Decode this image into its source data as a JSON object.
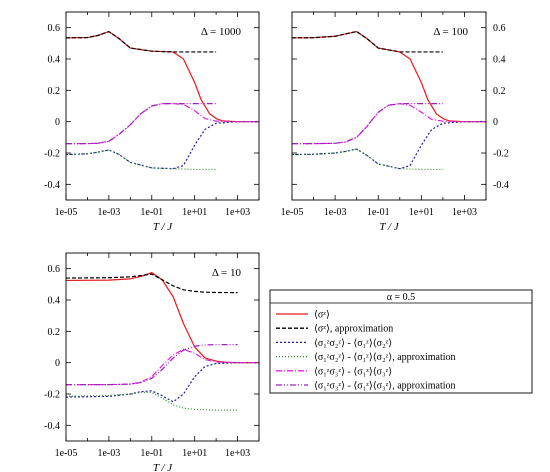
{
  "chart_data": [
    {
      "type": "line",
      "annotation": "Δ = 1000",
      "xlabel": "T / J",
      "ylabel": "",
      "x_scale": "log",
      "xlim": [
        1e-05,
        10000
      ],
      "ylim": [
        -0.5,
        0.7
      ],
      "x_tick_labels": [
        "1e-05",
        "1e-03",
        "1e-01",
        "1e+01",
        "1e+03"
      ],
      "y_tick_labels": [
        "-0.4",
        "-0.2",
        "0",
        "0.2",
        "0.4",
        "0.6"
      ],
      "y_ticks_side": "left",
      "grid": false,
      "series": [
        {
          "name": "⟨σᶻ⟩",
          "color": "#e41a1c",
          "dash": "",
          "x": [
            1e-05,
            0.0001,
            0.0003,
            0.001,
            0.003,
            0.01,
            0.1,
            1,
            3,
            10,
            20,
            50,
            100,
            200,
            1000,
            10000
          ],
          "y": [
            0.535,
            0.537,
            0.55,
            0.575,
            0.53,
            0.47,
            0.45,
            0.445,
            0.4,
            0.25,
            0.14,
            0.05,
            0.02,
            0.005,
            0,
            0
          ]
        },
        {
          "name": "⟨σᶻ⟩, approximation",
          "color": "#000000",
          "dash": "4,2",
          "x": [
            1e-05,
            0.0001,
            0.0003,
            0.001,
            0.003,
            0.01,
            0.1,
            1,
            10,
            100
          ],
          "y": [
            0.535,
            0.537,
            0.55,
            0.575,
            0.53,
            0.47,
            0.45,
            0.445,
            0.445,
            0.445
          ]
        },
        {
          "name": "⟨σ₁ᶻσ₂ᶻ⟩ - ⟨σ₁ᶻ⟩⟨σ₂ᶻ⟩",
          "color": "#1f1f9e",
          "dash": "2,2",
          "x": [
            1e-05,
            0.0001,
            0.0003,
            0.001,
            0.003,
            0.01,
            0.1,
            1,
            3,
            10,
            30,
            100,
            1000,
            10000
          ],
          "y": [
            -0.21,
            -0.205,
            -0.195,
            -0.18,
            -0.21,
            -0.26,
            -0.295,
            -0.3,
            -0.28,
            -0.15,
            -0.05,
            -0.01,
            0,
            0
          ]
        },
        {
          "name": "⟨σ₁ᶻσ₂ᶻ⟩ - ⟨σ₁ᶻ⟩⟨σ₂ᶻ⟩, approximation",
          "color": "#2e8b2e",
          "dash": "1,2",
          "x": [
            1e-05,
            0.0001,
            0.0003,
            0.001,
            0.003,
            0.01,
            0.1,
            1,
            10,
            100
          ],
          "y": [
            -0.21,
            -0.205,
            -0.195,
            -0.18,
            -0.21,
            -0.26,
            -0.295,
            -0.3,
            -0.305,
            -0.305
          ]
        },
        {
          "name": "⟨σ₁ᶻσ₃ᶻ⟩ - ⟨σ₁ᶻ⟩⟨σ₃ᶻ⟩",
          "color": "#e020e0",
          "dash": "6,2,1,2",
          "x": [
            1e-05,
            0.0001,
            0.0003,
            0.001,
            0.003,
            0.01,
            0.03,
            0.1,
            0.3,
            1,
            3,
            10,
            30,
            100,
            1000,
            10000
          ],
          "y": [
            -0.14,
            -0.14,
            -0.138,
            -0.125,
            -0.08,
            -0.02,
            0.05,
            0.1,
            0.115,
            0.115,
            0.11,
            0.07,
            0.02,
            0.003,
            0,
            0
          ]
        },
        {
          "name": "⟨σ₁ᶻσ₃ᶻ⟩ - ⟨σ₁ᶻ⟩⟨σ₃ᶻ⟩, approximation",
          "color": "#a020c0",
          "dash": "6,2,1,2,1,2",
          "x": [
            1e-05,
            0.0001,
            0.0003,
            0.001,
            0.003,
            0.01,
            0.03,
            0.1,
            0.3,
            1,
            10,
            100
          ],
          "y": [
            -0.14,
            -0.14,
            -0.138,
            -0.125,
            -0.08,
            -0.02,
            0.05,
            0.1,
            0.115,
            0.115,
            0.115,
            0.115
          ]
        }
      ]
    },
    {
      "type": "line",
      "annotation": "Δ = 100",
      "xlabel": "T / J",
      "ylabel": "",
      "x_scale": "log",
      "xlim": [
        1e-05,
        10000
      ],
      "ylim": [
        -0.5,
        0.7
      ],
      "x_tick_labels": [
        "1e-05",
        "1e-03",
        "1e-01",
        "1e+01",
        "1e+03"
      ],
      "y_tick_labels": [
        "-0.4",
        "-0.2",
        "0",
        "0.2",
        "0.4",
        "0.6"
      ],
      "y_ticks_side": "right",
      "grid": false,
      "series": [
        {
          "name": "⟨σᶻ⟩",
          "color": "#e41a1c",
          "dash": "",
          "x": [
            1e-05,
            0.0001,
            0.001,
            0.003,
            0.01,
            0.03,
            0.1,
            1,
            3,
            10,
            20,
            50,
            100,
            200,
            1000,
            10000
          ],
          "y": [
            0.535,
            0.536,
            0.545,
            0.56,
            0.575,
            0.53,
            0.47,
            0.445,
            0.4,
            0.25,
            0.14,
            0.05,
            0.02,
            0.005,
            0,
            0
          ]
        },
        {
          "name": "⟨σᶻ⟩, approximation",
          "color": "#000000",
          "dash": "4,2",
          "x": [
            1e-05,
            0.0001,
            0.001,
            0.003,
            0.01,
            0.03,
            0.1,
            1,
            10,
            100
          ],
          "y": [
            0.535,
            0.536,
            0.545,
            0.56,
            0.575,
            0.53,
            0.47,
            0.445,
            0.445,
            0.445
          ]
        },
        {
          "name": "⟨σ₁ᶻσ₂ᶻ⟩ - ⟨σ₁ᶻ⟩⟨σ₂ᶻ⟩",
          "color": "#1f1f9e",
          "dash": "2,2",
          "x": [
            1e-05,
            0.0001,
            0.001,
            0.003,
            0.01,
            0.03,
            0.1,
            1,
            3,
            10,
            30,
            100,
            1000,
            10000
          ],
          "y": [
            -0.21,
            -0.208,
            -0.2,
            -0.19,
            -0.175,
            -0.215,
            -0.27,
            -0.3,
            -0.28,
            -0.15,
            -0.05,
            -0.01,
            0,
            0
          ]
        },
        {
          "name": "⟨σ₁ᶻσ₂ᶻ⟩ - ⟨σ₁ᶻ⟩⟨σ₂ᶻ⟩, approximation",
          "color": "#2e8b2e",
          "dash": "1,2",
          "x": [
            1e-05,
            0.0001,
            0.001,
            0.003,
            0.01,
            0.03,
            0.1,
            1,
            10,
            100
          ],
          "y": [
            -0.21,
            -0.208,
            -0.2,
            -0.19,
            -0.175,
            -0.215,
            -0.27,
            -0.3,
            -0.305,
            -0.305
          ]
        },
        {
          "name": "⟨σ₁ᶻσ₃ᶻ⟩ - ⟨σ₁ᶻ⟩⟨σ₃ᶻ⟩",
          "color": "#e020e0",
          "dash": "6,2,1,2",
          "x": [
            1e-05,
            0.0001,
            0.001,
            0.003,
            0.01,
            0.03,
            0.1,
            0.3,
            1,
            3,
            10,
            30,
            100,
            1000,
            10000
          ],
          "y": [
            -0.14,
            -0.14,
            -0.138,
            -0.13,
            -0.1,
            -0.03,
            0.06,
            0.105,
            0.115,
            0.105,
            0.06,
            0.015,
            0.003,
            0,
            0
          ]
        },
        {
          "name": "⟨σ₁ᶻσ₃ᶻ⟩ - ⟨σ₁ᶻ⟩⟨σ₃ᶻ⟩, approximation",
          "color": "#a020c0",
          "dash": "6,2,1,2,1,2",
          "x": [
            1e-05,
            0.0001,
            0.001,
            0.003,
            0.01,
            0.03,
            0.1,
            0.3,
            1,
            10,
            100
          ],
          "y": [
            -0.14,
            -0.14,
            -0.138,
            -0.13,
            -0.1,
            -0.03,
            0.06,
            0.105,
            0.115,
            0.115,
            0.115
          ]
        }
      ]
    },
    {
      "type": "line",
      "annotation": "Δ = 10",
      "xlabel": "T / J",
      "ylabel": "",
      "x_scale": "log",
      "xlim": [
        1e-05,
        10000
      ],
      "ylim": [
        -0.5,
        0.7
      ],
      "x_tick_labels": [
        "1e-05",
        "1e-03",
        "1e-01",
        "1e+01",
        "1e+03"
      ],
      "y_tick_labels": [
        "-0.4",
        "-0.2",
        "0",
        "0.2",
        "0.4",
        "0.6"
      ],
      "y_ticks_side": "left",
      "grid": false,
      "series": [
        {
          "name": "⟨σᶻ⟩",
          "color": "#e41a1c",
          "dash": "",
          "x": [
            1e-05,
            0.001,
            0.01,
            0.03,
            0.1,
            0.3,
            1,
            3,
            10,
            30,
            100,
            300,
            1000,
            10000
          ],
          "y": [
            0.525,
            0.527,
            0.535,
            0.55,
            0.575,
            0.53,
            0.42,
            0.25,
            0.1,
            0.03,
            0.01,
            0.002,
            0,
            0
          ]
        },
        {
          "name": "⟨σᶻ⟩, approximation",
          "color": "#000000",
          "dash": "4,2",
          "x": [
            1e-05,
            0.001,
            0.01,
            0.03,
            0.1,
            0.3,
            1,
            3,
            10,
            30,
            100,
            1000
          ],
          "y": [
            0.54,
            0.542,
            0.548,
            0.556,
            0.565,
            0.53,
            0.49,
            0.465,
            0.455,
            0.45,
            0.448,
            0.447
          ]
        },
        {
          "name": "⟨σ₁ᶻσ₂ᶻ⟩ - ⟨σ₁ᶻ⟩⟨σ₂ᶻ⟩",
          "color": "#1f1f9e",
          "dash": "2,2",
          "x": [
            1e-05,
            0.001,
            0.01,
            0.03,
            0.1,
            0.3,
            1,
            3,
            10,
            30,
            100,
            1000,
            10000
          ],
          "y": [
            -0.22,
            -0.215,
            -0.2,
            -0.185,
            -0.18,
            -0.21,
            -0.25,
            -0.2,
            -0.09,
            -0.025,
            -0.005,
            0,
            0
          ]
        },
        {
          "name": "⟨σ₁ᶻσ₂ᶻ⟩ - ⟨σ₁ᶻ⟩⟨σ₂ᶻ⟩, approximation",
          "color": "#2e8b2e",
          "dash": "1,2",
          "x": [
            1e-05,
            0.001,
            0.01,
            0.03,
            0.1,
            0.3,
            1,
            3,
            10,
            100,
            1000
          ],
          "y": [
            -0.215,
            -0.21,
            -0.2,
            -0.19,
            -0.19,
            -0.225,
            -0.27,
            -0.29,
            -0.298,
            -0.303,
            -0.303
          ]
        },
        {
          "name": "⟨σ₁ᶻσ₃ᶻ⟩ - ⟨σ₁ᶻ⟩⟨σ₃ᶻ⟩",
          "color": "#e020e0",
          "dash": "6,2,1,2",
          "x": [
            1e-05,
            0.001,
            0.01,
            0.03,
            0.1,
            0.3,
            1,
            3,
            10,
            30,
            100,
            1000,
            10000
          ],
          "y": [
            -0.14,
            -0.14,
            -0.137,
            -0.125,
            -0.09,
            -0.02,
            0.05,
            0.085,
            0.06,
            0.02,
            0.005,
            0,
            0
          ]
        },
        {
          "name": "⟨σ₁ᶻσ₃ᶻ⟩ - ⟨σ₁ᶻ⟩⟨σ₃ᶻ⟩, approximation",
          "color": "#a020c0",
          "dash": "6,2,1,2,1,2",
          "x": [
            1e-05,
            0.001,
            0.01,
            0.03,
            0.1,
            0.3,
            1,
            3,
            10,
            30,
            100,
            1000
          ],
          "y": [
            -0.14,
            -0.14,
            -0.137,
            -0.127,
            -0.1,
            -0.045,
            0.03,
            0.08,
            0.105,
            0.113,
            0.115,
            0.115
          ]
        }
      ]
    }
  ],
  "legend": {
    "title": "α = 0.5",
    "entries": [
      {
        "label": "⟨σᶻ⟩",
        "color": "#e41a1c",
        "dash": ""
      },
      {
        "label": "⟨σᶻ⟩, approximation",
        "color": "#000000",
        "dash": "4,2"
      },
      {
        "label": "⟨σ₁ᶻσ₂ᶻ⟩ - ⟨σ₁ᶻ⟩⟨σ₂ᶻ⟩",
        "color": "#1f1f9e",
        "dash": "2,2"
      },
      {
        "label": "⟨σ₁ᶻσ₂ᶻ⟩ - ⟨σ₁ᶻ⟩⟨σ₂ᶻ⟩, approximation",
        "color": "#2e8b2e",
        "dash": "1,2"
      },
      {
        "label": "⟨σ₁ᶻσ₃ᶻ⟩ - ⟨σ₁ᶻ⟩⟨σ₃ᶻ⟩",
        "color": "#e020e0",
        "dash": "6,2,1,2"
      },
      {
        "label": "⟨σ₁ᶻσ₃ᶻ⟩ - ⟨σ₁ᶻ⟩⟨σ₃ᶻ⟩, approximation",
        "color": "#a020c0",
        "dash": "6,2,1,2,1,2"
      }
    ]
  }
}
